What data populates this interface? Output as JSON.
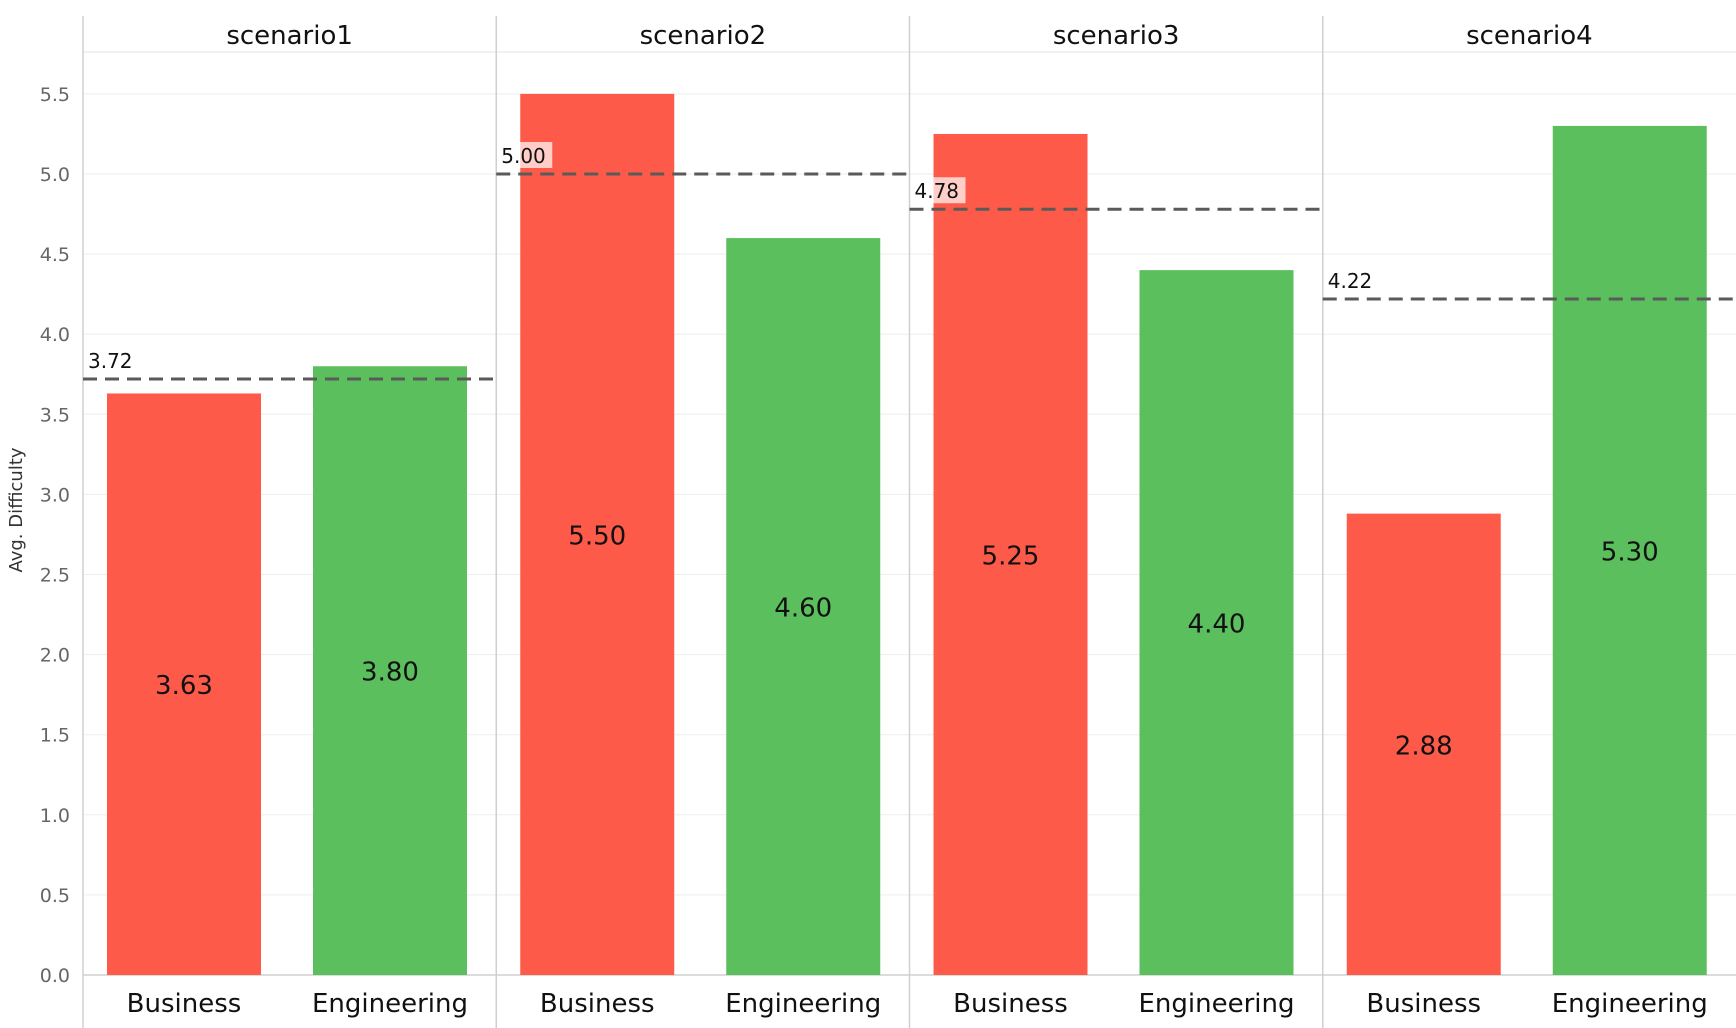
{
  "chart_data": {
    "type": "bar",
    "ylabel": "Avg. Difficulty",
    "ylim": [
      0,
      5.8
    ],
    "yticks": [
      "0.0",
      "0.5",
      "1.0",
      "1.5",
      "2.0",
      "2.5",
      "3.0",
      "3.5",
      "4.0",
      "4.5",
      "5.0",
      "5.5"
    ],
    "grid": true,
    "categories": [
      "Business",
      "Engineering"
    ],
    "colors": {
      "Business": "#fe5a4a",
      "Engineering": "#5bbf5e"
    },
    "reference_line_color": "#5a5a5a",
    "panels": [
      {
        "title": "scenario1",
        "values": [
          3.63,
          3.8
        ],
        "value_labels": [
          "3.63",
          "3.80"
        ],
        "reference": 3.72,
        "reference_label": "3.72"
      },
      {
        "title": "scenario2",
        "values": [
          5.5,
          4.6
        ],
        "value_labels": [
          "5.50",
          "4.60"
        ],
        "reference": 5.0,
        "reference_label": "5.00"
      },
      {
        "title": "scenario3",
        "values": [
          5.25,
          4.4
        ],
        "value_labels": [
          "5.25",
          "4.40"
        ],
        "reference": 4.78,
        "reference_label": "4.78"
      },
      {
        "title": "scenario4",
        "values": [
          2.88,
          5.3
        ],
        "value_labels": [
          "2.88",
          "5.30"
        ],
        "reference": 4.22,
        "reference_label": "4.22"
      }
    ]
  }
}
